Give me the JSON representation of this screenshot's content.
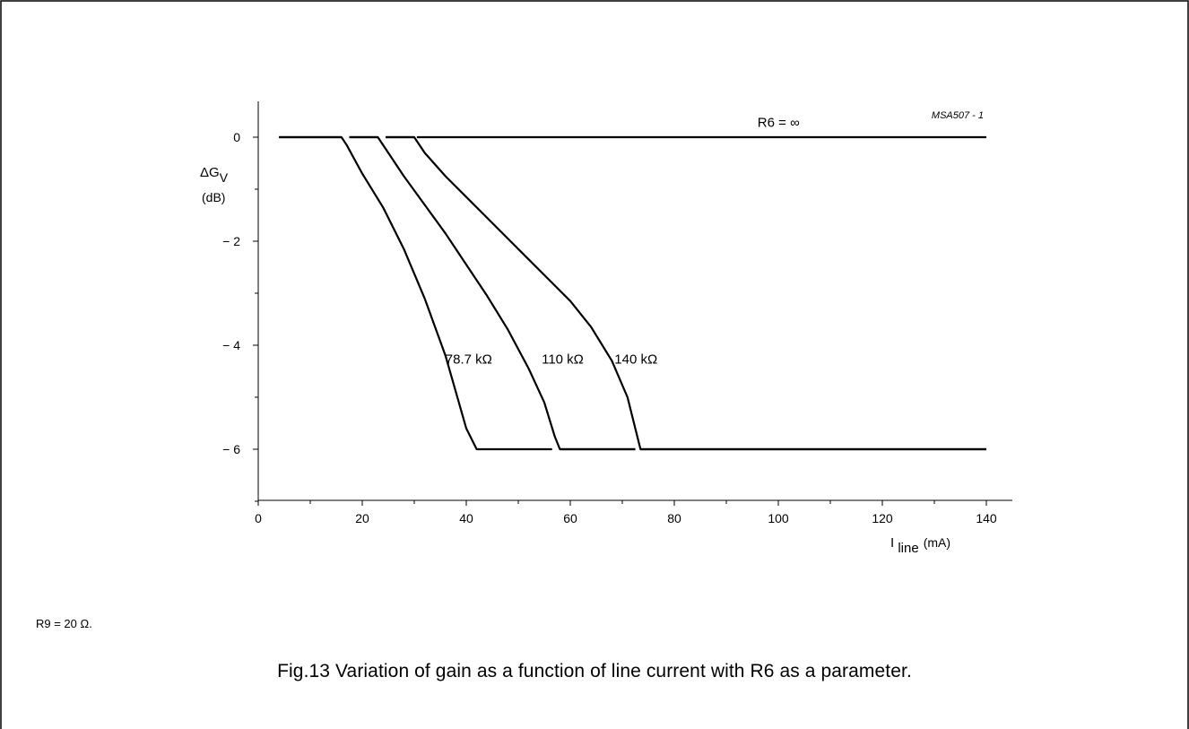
{
  "chart_data": {
    "type": "line",
    "code": "MSA507 - 1",
    "xlabel_main": "I",
    "xlabel_sub": "line",
    "xlabel_unit": "(mA)",
    "ylabel_main": "ΔG",
    "ylabel_sub": "V",
    "ylabel_unit": "(dB)",
    "xlim": [
      0,
      145
    ],
    "ylim": [
      -7,
      0.6
    ],
    "x_ticks": [
      0,
      20,
      40,
      60,
      80,
      100,
      120,
      140
    ],
    "x_tick_labels": [
      "0",
      "20",
      "40",
      "60",
      "80",
      "100",
      "120",
      "140"
    ],
    "y_ticks": [
      0,
      -2,
      -4,
      -6
    ],
    "y_tick_labels": [
      "0",
      "− 2",
      "− 4",
      "− 6"
    ],
    "y_minor_ticks": [
      -1,
      -3,
      -5,
      -7
    ],
    "grid": false,
    "series": [
      {
        "name": "R6 = ∞",
        "x": [
          4,
          140
        ],
        "y": [
          0,
          0
        ]
      },
      {
        "name": "78.7 kΩ",
        "x": [
          4,
          16,
          17,
          20,
          24,
          28,
          32,
          36,
          40,
          42,
          56.5
        ],
        "y": [
          0,
          0,
          -0.15,
          -0.7,
          -1.35,
          -2.15,
          -3.1,
          -4.2,
          -5.6,
          -6,
          -6
        ]
      },
      {
        "name": "110 kΩ",
        "x": [
          17.5,
          23,
          25,
          28,
          32,
          36,
          40,
          44,
          48,
          52,
          55,
          57,
          58,
          72.5
        ],
        "y": [
          0,
          0,
          -0.3,
          -0.75,
          -1.3,
          -1.85,
          -2.45,
          -3.05,
          -3.7,
          -4.45,
          -5.1,
          -5.75,
          -6,
          -6
        ]
      },
      {
        "name": "140 kΩ",
        "x": [
          24.5,
          30,
          32,
          36,
          40,
          44,
          48,
          52,
          56,
          60,
          64,
          68,
          71,
          72.5,
          73.5,
          140
        ],
        "y": [
          0,
          0,
          -0.3,
          -0.75,
          -1.15,
          -1.55,
          -1.95,
          -2.35,
          -2.75,
          -3.15,
          -3.65,
          -4.3,
          -5.0,
          -5.6,
          -6,
          -6
        ]
      }
    ],
    "gap_segments": [
      {
        "x": [
          30.5,
          140
        ],
        "y": [
          0,
          0
        ]
      },
      {
        "x": [
          58,
          72.5
        ],
        "y": [
          -6,
          -6
        ]
      },
      {
        "x": [
          73.5,
          140
        ],
        "y": [
          -6,
          -6
        ]
      }
    ],
    "annotations": [
      {
        "text": "R6 = ∞",
        "x": 96,
        "y": 0.2
      },
      {
        "text": "78.7 kΩ",
        "x": 36,
        "y": -4.35
      },
      {
        "text": "110 kΩ",
        "x": 54.5,
        "y": -4.35
      },
      {
        "text": "140 kΩ",
        "x": 68.5,
        "y": -4.35
      }
    ]
  },
  "note": "R9 = 20 Ω.",
  "caption": "Fig.13  Variation of gain as a function of line current with R6 as a parameter."
}
